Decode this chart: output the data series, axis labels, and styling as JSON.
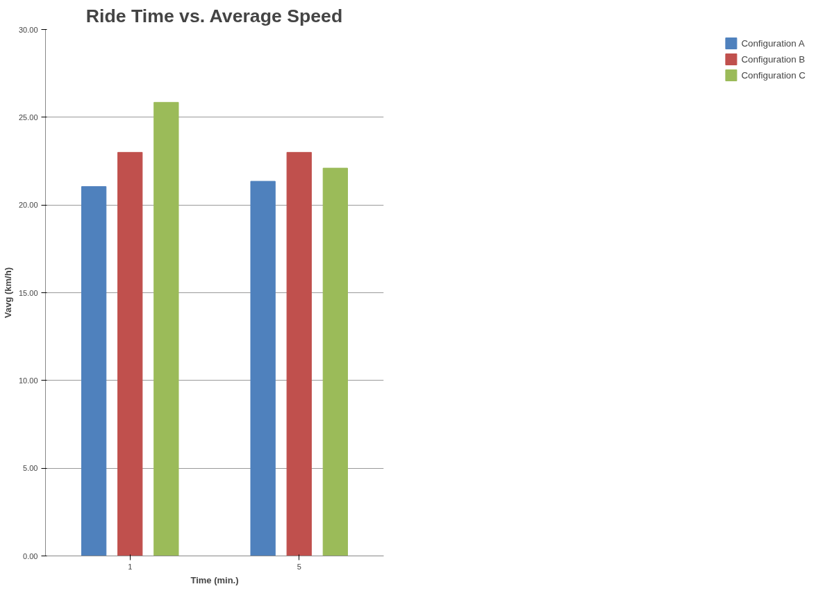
{
  "chart_data": {
    "type": "bar",
    "title": "Ride Time vs. Average Speed",
    "xlabel": "Time (min.)",
    "ylabel": "Vavg (km/h)",
    "categories": [
      "1",
      "5"
    ],
    "series": [
      {
        "name": "Configuration A",
        "color": "#4f81bd",
        "values": [
          21.05,
          21.35
        ]
      },
      {
        "name": "Configuration B",
        "color": "#c0504d",
        "values": [
          23.0,
          23.0
        ]
      },
      {
        "name": "Configuration C",
        "color": "#9bbb59",
        "values": [
          25.85,
          22.1
        ]
      }
    ],
    "ylim": [
      0,
      30
    ],
    "yticks": [
      {
        "value": 0,
        "label": "0.00"
      },
      {
        "value": 5,
        "label": "5.00"
      },
      {
        "value": 10,
        "label": "10.00"
      },
      {
        "value": 15,
        "label": "15.00"
      },
      {
        "value": 20,
        "label": "20.00"
      },
      {
        "value": 25,
        "label": "25.00"
      },
      {
        "value": 30,
        "label": "30.00"
      }
    ],
    "grid": "y",
    "legend": "right"
  }
}
